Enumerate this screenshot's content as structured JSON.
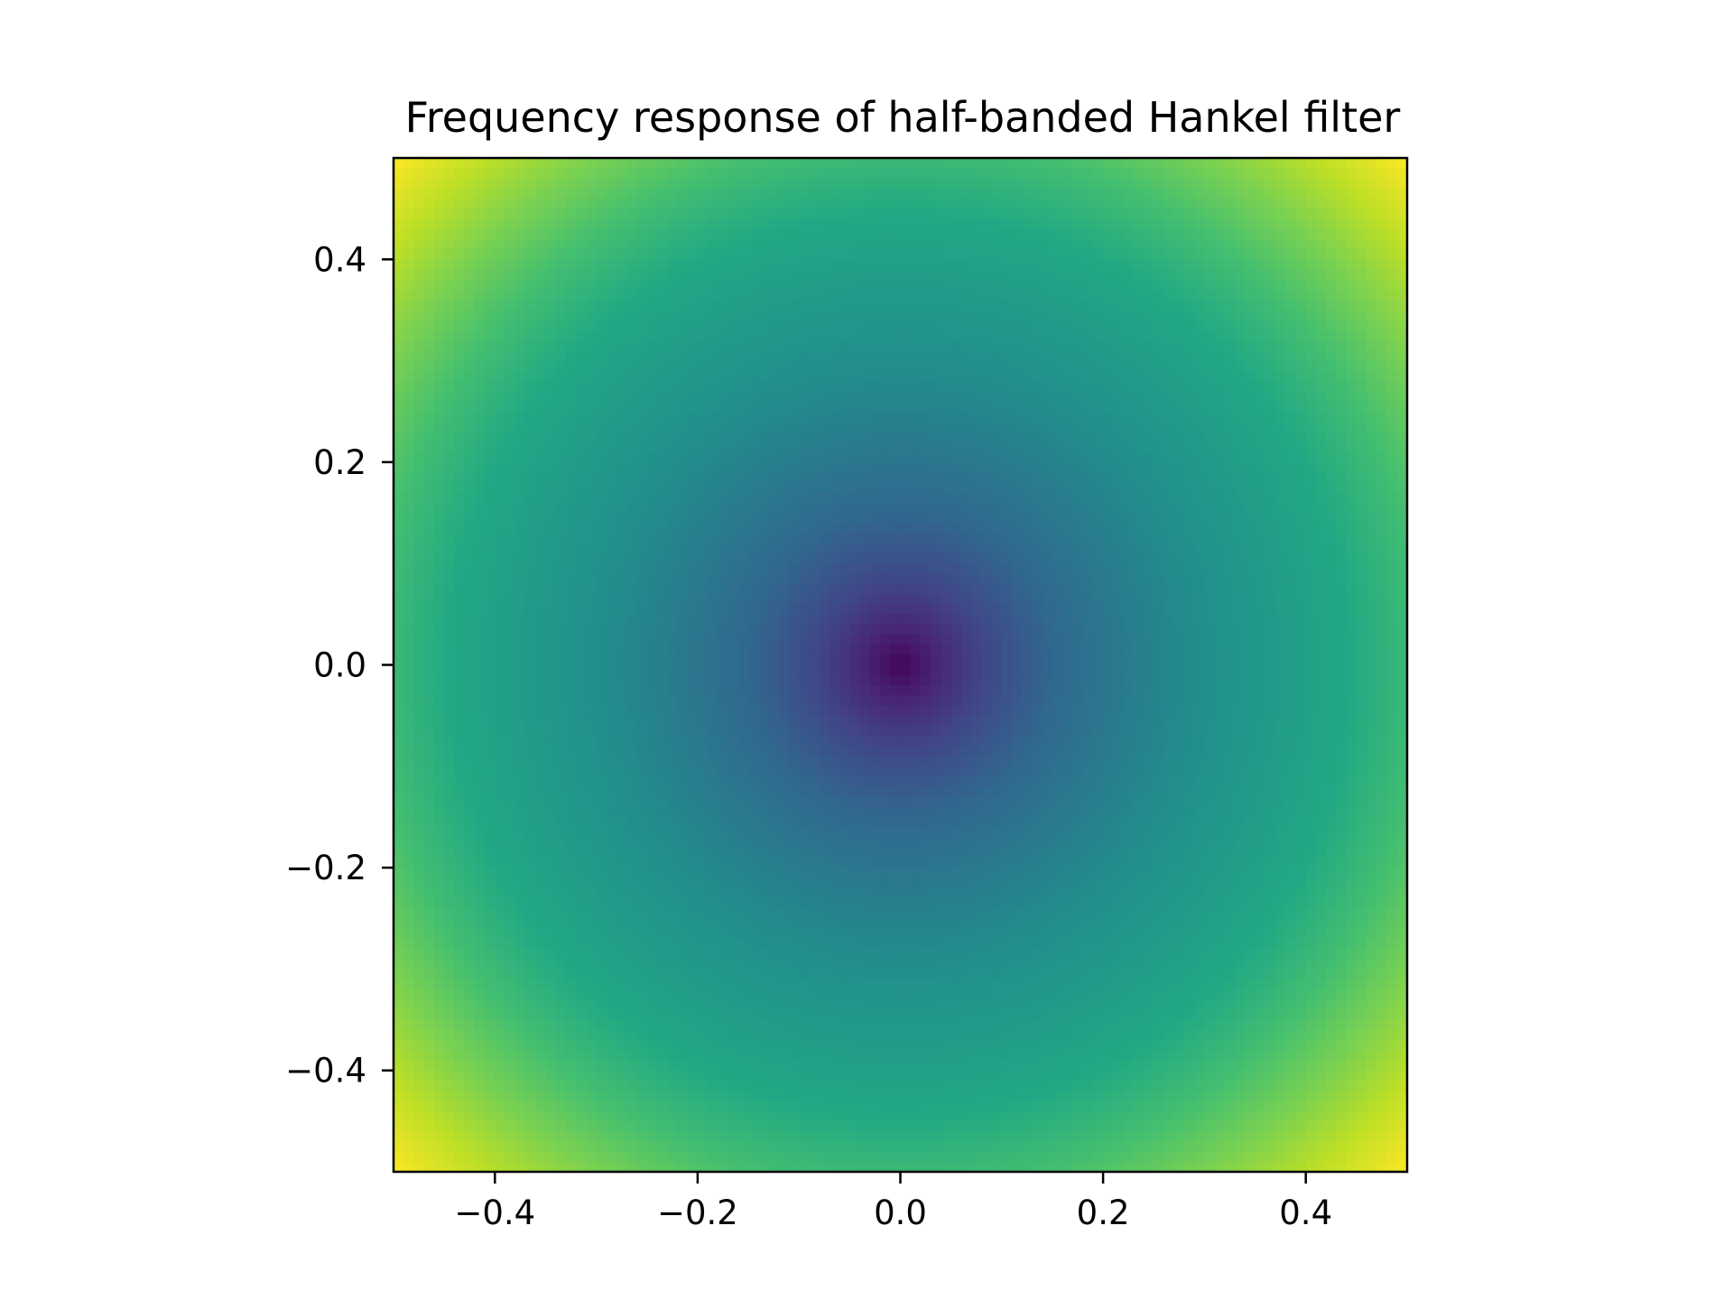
{
  "chart_data": {
    "type": "heatmap",
    "title": "Frequency response of half-banded Hankel filter",
    "xlabel": "",
    "ylabel": "",
    "xlim": [
      -0.5,
      0.5
    ],
    "ylim": [
      -0.5,
      0.5
    ],
    "x_ticks": [
      -0.4,
      -0.2,
      0.0,
      0.2,
      0.4
    ],
    "y_ticks": [
      -0.4,
      -0.2,
      0.0,
      0.2,
      0.4
    ],
    "x_tick_labels": [
      "−0.4",
      "−0.2",
      "0.0",
      "0.2",
      "0.4"
    ],
    "y_tick_labels": [
      "−0.4",
      "−0.2",
      "0.0",
      "0.2",
      "0.4"
    ],
    "colormap": "viridis",
    "grid": false,
    "legend": "none",
    "surface": {
      "description_of_values": "magnitude minimum at center (0,0), increasing radially toward corners",
      "samples": [
        {
          "x": 0.0,
          "y": 0.0,
          "value": 0.0
        },
        {
          "x": 0.1,
          "y": 0.0,
          "value": 0.3
        },
        {
          "x": 0.2,
          "y": 0.0,
          "value": 0.45
        },
        {
          "x": 0.3,
          "y": 0.0,
          "value": 0.52
        },
        {
          "x": 0.4,
          "y": 0.0,
          "value": 0.62
        },
        {
          "x": 0.5,
          "y": 0.0,
          "value": 0.75
        },
        {
          "x": 0.5,
          "y": 0.5,
          "value": 1.0
        }
      ]
    }
  }
}
